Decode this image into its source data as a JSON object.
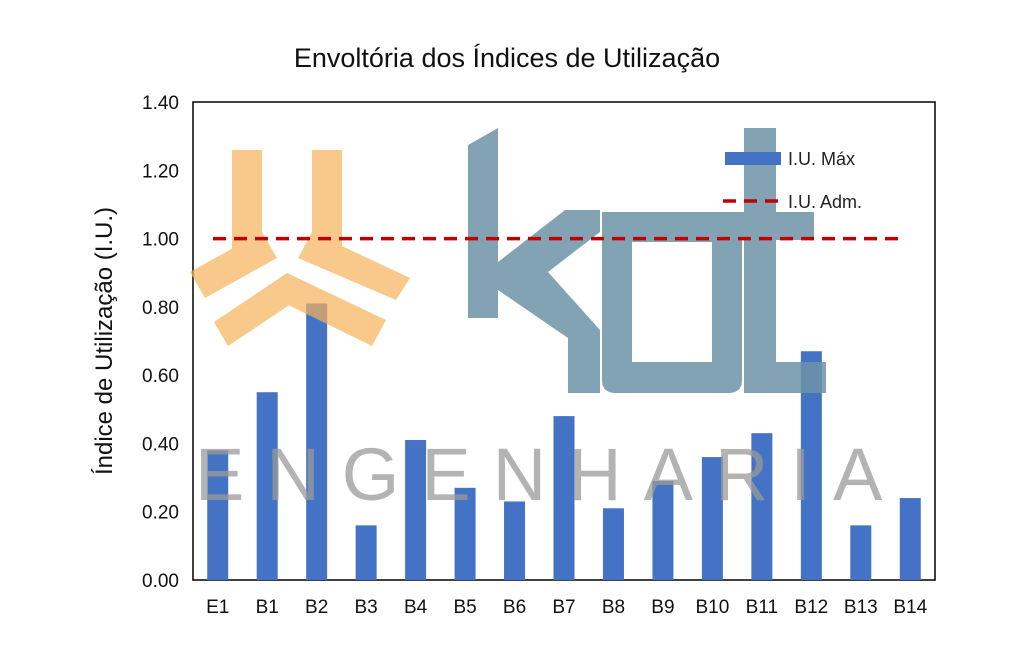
{
  "chart_data": {
    "type": "bar",
    "title": "Envoltória dos Índices de Utilização",
    "xlabel": "",
    "ylabel": "Índice de Utilização (I.U.)",
    "categories": [
      "E1",
      "B1",
      "B2",
      "B3",
      "B4",
      "B5",
      "B6",
      "B7",
      "B8",
      "B9",
      "B10",
      "B11",
      "B12",
      "B13",
      "B14"
    ],
    "series": [
      {
        "name": "I.U. Máx",
        "values": [
          0.38,
          0.55,
          0.81,
          0.16,
          0.41,
          0.27,
          0.23,
          0.48,
          0.21,
          0.29,
          0.36,
          0.43,
          0.67,
          0.16,
          0.24
        ],
        "color": "#4472c4"
      }
    ],
    "reference_line": {
      "name": "I.U. Adm.",
      "value": 1.0,
      "color": "#c00000",
      "style": "dashed"
    },
    "ylim": [
      0,
      1.4
    ],
    "yticks": [
      "0.00",
      "0.20",
      "0.40",
      "0.60",
      "0.80",
      "1.00",
      "1.20",
      "1.40"
    ],
    "grid": false,
    "legend": "top-right"
  },
  "watermark": {
    "text": "ENGENHARIA",
    "logo_text": "kot",
    "logo_color": "#6d93a8",
    "emblem_color": "#f6b35b"
  }
}
